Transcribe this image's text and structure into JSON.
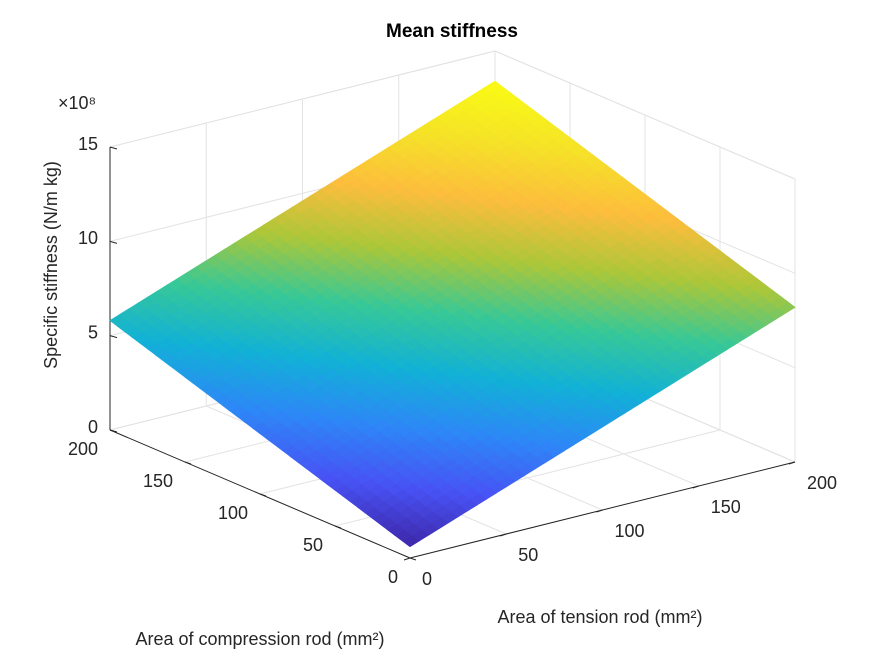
{
  "chart_data": {
    "type": "surface",
    "title": "Mean stiffness",
    "xlabel": "Area of compression rod (mm²)",
    "ylabel": "Area of tension rod (mm²)",
    "zlabel": "Specific stiffness (N/m kg)",
    "zmultiplier": "×10⁸",
    "x": [
      0,
      50,
      100,
      150,
      200
    ],
    "y": [
      0,
      50,
      100,
      150,
      200
    ],
    "z": [
      [
        0.6,
        2.5,
        4.4,
        6.3,
        8.2
      ],
      [
        1.9,
        3.8,
        5.7,
        7.6,
        9.5
      ],
      [
        3.2,
        5.1,
        7.0,
        8.9,
        10.8
      ],
      [
        4.5,
        6.4,
        8.3,
        10.2,
        12.1
      ],
      [
        5.8,
        7.7,
        9.6,
        11.5,
        13.4
      ]
    ],
    "xlim": [
      0,
      200
    ],
    "ylim": [
      0,
      200
    ],
    "zlim": [
      0,
      15
    ],
    "xticks": [
      0,
      50,
      100,
      150,
      200
    ],
    "yticks": [
      0,
      50,
      100,
      150,
      200
    ],
    "zticks": [
      0,
      5,
      10,
      15
    ],
    "colormap": "parula",
    "grid": true
  }
}
